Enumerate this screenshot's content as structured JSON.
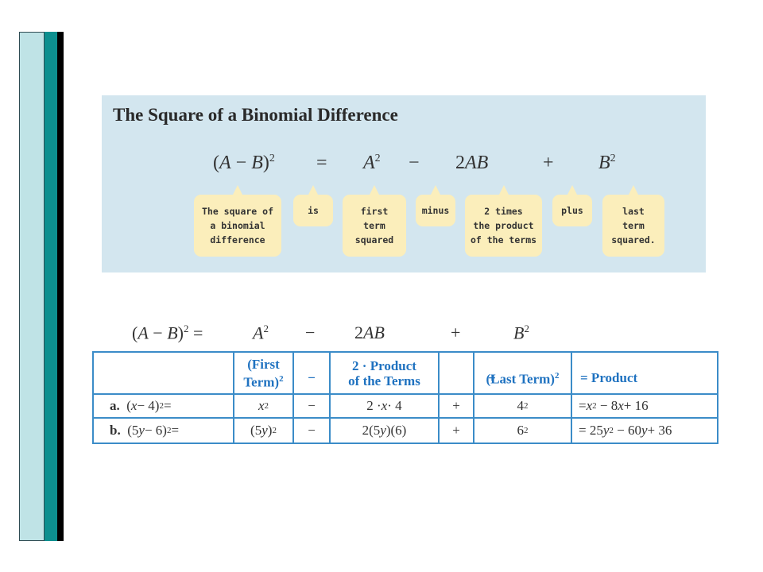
{
  "defbox": {
    "title": "The Square of a Binomial Difference",
    "bubbles": {
      "b1": [
        "The square of",
        "a binomial",
        "difference"
      ],
      "b2": [
        "is"
      ],
      "b3": [
        "first",
        "term",
        "squared"
      ],
      "b4": [
        "minus"
      ],
      "b5": [
        "2 times",
        "the product",
        "of the terms"
      ],
      "b6": [
        "plus"
      ],
      "b7": [
        "last",
        "term",
        "squared."
      ]
    }
  },
  "table": {
    "header": {
      "first_term_a": "(First",
      "first_term_b": "Term)",
      "minus": "−",
      "product_a": "2 · Product",
      "product_b": "of the Terms",
      "plus": "+",
      "last_term": "(Last Term)",
      "result": "= Product",
      "exp": "2"
    },
    "rows": [
      {
        "label": "a.",
        "minus": "−",
        "plus": "+"
      },
      {
        "label": "b.",
        "minus": "−",
        "plus": "+"
      }
    ]
  },
  "colors": {
    "box_bg": "#d3e6ef",
    "bubble_bg": "#fbeebb",
    "table_border": "#3b8cc8",
    "header_text": "#1f72c0",
    "teal_bar": "#0d8f8f"
  }
}
